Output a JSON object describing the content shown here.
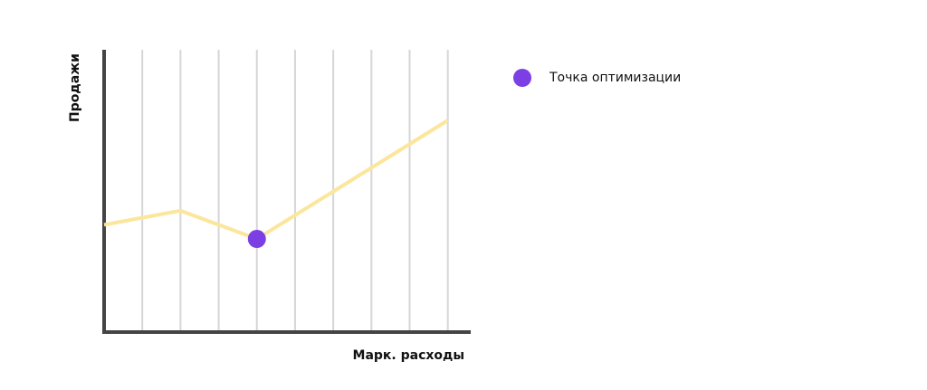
{
  "chart_data": {
    "type": "line",
    "x_label": "Марк. расходы",
    "y_label": "Продажи",
    "x": [
      0,
      2,
      4,
      9
    ],
    "series": [
      {
        "color": "#fbe69c",
        "values": [
          3.8,
          4.3,
          3.3,
          7.5
        ]
      }
    ],
    "highlight": {
      "name": "Точка оптимизации",
      "color": "#7b3fe4",
      "x": 4,
      "value": 3.3
    },
    "xlim": [
      0,
      9.6
    ],
    "ylim": [
      0,
      10
    ],
    "xticks": [
      1,
      2,
      3,
      4,
      5,
      6,
      7,
      8,
      9
    ],
    "grid": true
  }
}
